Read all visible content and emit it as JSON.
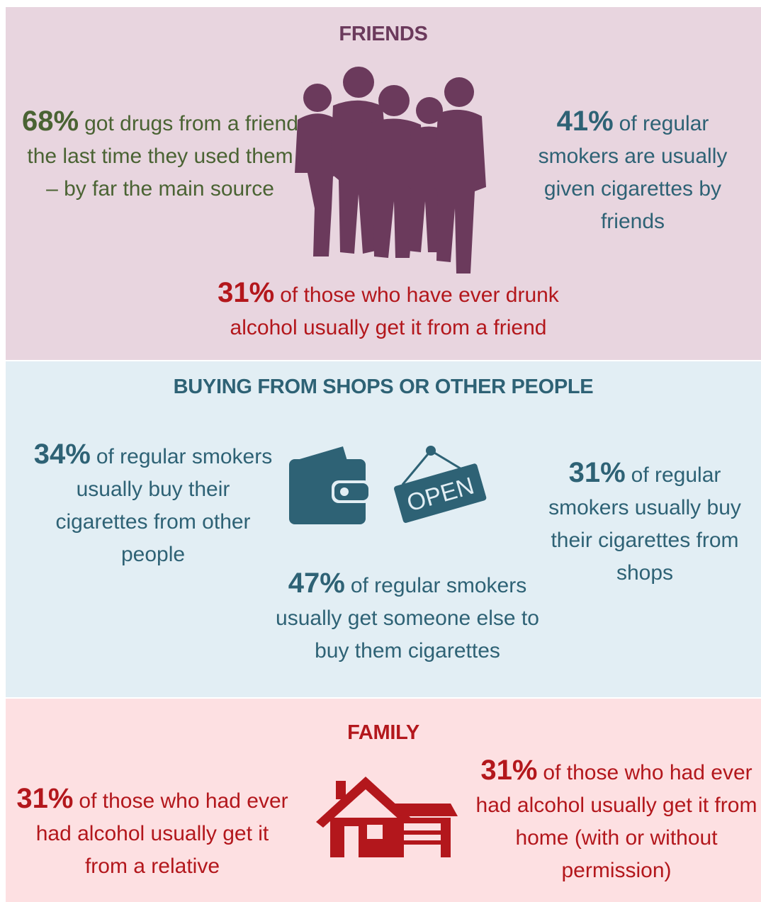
{
  "friends": {
    "title": "FRIENDS",
    "icon": "group-of-people-icon",
    "stat_left": {
      "pct": "68%",
      "text": "got drugs from a friend the last time they used them – by far the main source",
      "color": "#4a6333"
    },
    "stat_right": {
      "pct": "41%",
      "text": "of regular smokers are usually given cigarettes by friends",
      "color": "#2e6275"
    },
    "stat_bottom": {
      "pct": "31%",
      "text": "of those who have ever drunk alcohol usually get it from a friend",
      "color": "#b3171c"
    }
  },
  "buying": {
    "title": "BUYING FROM SHOPS OR OTHER PEOPLE",
    "icons": [
      "wallet-icon",
      "open-sign-icon"
    ],
    "open_sign_text": "OPEN",
    "stat_left": {
      "pct": "34%",
      "text": "of regular smokers usually buy their cigarettes from other people"
    },
    "stat_right": {
      "pct": "31%",
      "text": "of regular smokers usually buy their cigarettes from shops"
    },
    "stat_bottom": {
      "pct": "47%",
      "text": "of regular smokers usually get someone else to buy them cigarettes"
    }
  },
  "family": {
    "title": "FAMILY",
    "icon": "house-icon",
    "stat_left": {
      "pct": "31%",
      "text": "of those who had ever had alcohol usually get it from a relative"
    },
    "stat_right": {
      "pct": "31%",
      "text": "of those who had ever had alcohol usually get it from home (with or without permission)"
    }
  },
  "colors": {
    "friends_bg": "#e8d5df",
    "buying_bg": "#e2eef4",
    "family_bg": "#fde0e2",
    "purple": "#6b3a5c",
    "green": "#4a6333",
    "teal": "#2e6275",
    "red": "#b3171c"
  }
}
